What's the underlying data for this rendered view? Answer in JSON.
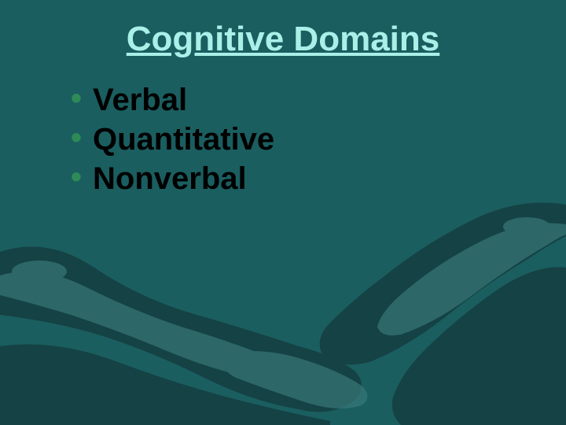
{
  "slide": {
    "background_color": "#1a5e60",
    "art_color_dark": "#153f41",
    "art_color_light": "#3a7b7c",
    "title": {
      "text": "Cognitive Domains",
      "color": "#a8f0e8",
      "fontsize": 44
    },
    "bullets": {
      "text_color": "#000000",
      "bullet_color": "#2e8b57",
      "fontsize": 40,
      "items": [
        "Verbal",
        "Quantitative",
        "Nonverbal"
      ]
    }
  }
}
